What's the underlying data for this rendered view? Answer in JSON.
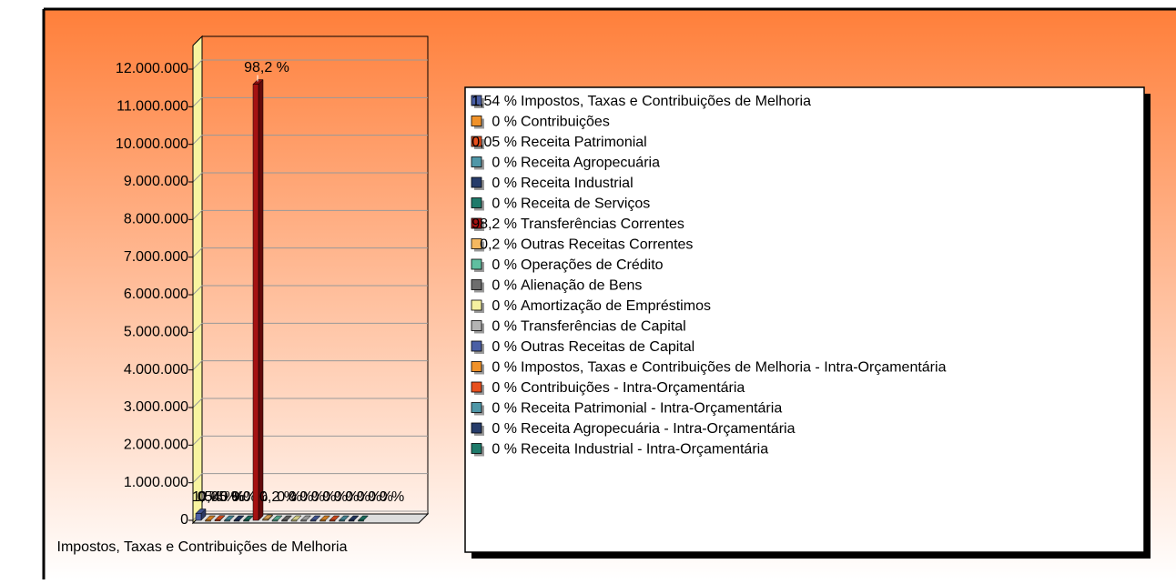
{
  "chart_data": {
    "type": "bar3d",
    "categories": [
      "Impostos, Taxas e Contribuições de Melhoria",
      "Contribuições",
      "Receita Patrimonial",
      "Receita Agropecuária",
      "Receita Industrial",
      "Receita de Serviços",
      "Transferências Correntes",
      "Outras Receitas Correntes",
      "Operações de Crédito",
      "Alienação de Bens",
      "Amortização de Empréstimos",
      "Transferências de Capital",
      "Outras Receitas de Capital",
      "Impostos, Taxas e Contribuições de Melhoria - Intra-Orçamentária",
      "Contribuições - Intra-Orçamentária",
      "Receita Patrimonial - Intra-Orçamentária",
      "Receita Agropecuária - Intra-Orçamentária",
      "Receita Industrial - Intra-Orçamentária"
    ],
    "values": [
      182000,
      0,
      6000,
      0,
      0,
      0,
      11600000,
      24000,
      0,
      0,
      0,
      0,
      0,
      0,
      0,
      0,
      0,
      0
    ],
    "percent_labels": [
      "1,54 %",
      "0 %",
      "0,05 %",
      "0 %",
      "0 %",
      "0 %",
      "98,2 %",
      "0,2 %",
      "0 %",
      "0 %",
      "0 %",
      "0 %",
      "0 %",
      "0 %",
      "0 %",
      "0 %",
      "0 %",
      "0 %"
    ],
    "colors": [
      "#4a5fa5",
      "#f0922a",
      "#e8501e",
      "#4f97a8",
      "#263c6a",
      "#1e7a6a",
      "#a51212",
      "#f4b860",
      "#5fbfa0",
      "#6e6e6e",
      "#f6f0a0",
      "#b4b4b4",
      "#4a5fa5",
      "#f0922a",
      "#e8501e",
      "#4f97a8",
      "#263c6a",
      "#1e7a6a"
    ],
    "ylim": [
      0,
      12000000
    ],
    "yticks": [
      0,
      {
        "value": 1000000,
        "label": "1.000.000"
      },
      {
        "value": 2000000,
        "label": "2.000.000"
      },
      {
        "value": 3000000,
        "label": "3.000.000"
      },
      {
        "value": 4000000,
        "label": "4.000.000"
      },
      {
        "value": 5000000,
        "label": "5.000.000"
      },
      {
        "value": 6000000,
        "label": "6.000.000"
      },
      {
        "value": 7000000,
        "label": "7.000.000"
      },
      {
        "value": 8000000,
        "label": "8.000.000"
      },
      {
        "value": 9000000,
        "label": "9.000.000"
      },
      {
        "value": 10000000,
        "label": "10.000.000"
      },
      {
        "value": 11000000,
        "label": "11.000.000"
      },
      {
        "value": 12000000,
        "label": "12.000.000"
      }
    ],
    "grid": true
  }
}
